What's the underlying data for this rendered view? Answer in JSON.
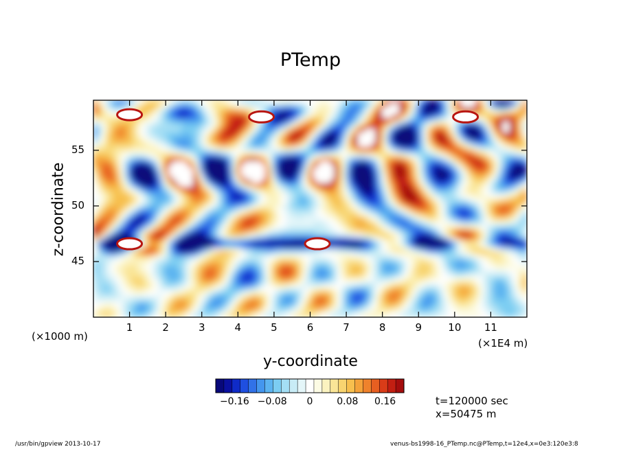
{
  "chart_data": {
    "type": "heatmap",
    "title": "PTemp",
    "xlabel": "y-coordinate",
    "ylabel": "z-coordinate",
    "x_units": "(×1E4 m)",
    "y_units": "(×1000 m)",
    "xlim": [
      0,
      12
    ],
    "ylim": [
      40,
      59.5
    ],
    "x_ticks": [
      "1",
      "2",
      "3",
      "4",
      "5",
      "6",
      "7",
      "8",
      "9",
      "10",
      "11"
    ],
    "x_tick_values": [
      1,
      2,
      3,
      4,
      5,
      6,
      7,
      8,
      9,
      10,
      11
    ],
    "y_ticks": [
      "45",
      "50",
      "55"
    ],
    "y_tick_values": [
      45,
      50,
      55
    ],
    "colorbar": {
      "min": -0.2,
      "max": 0.2,
      "tick_labels": [
        "−0.16",
        "−0.08",
        "0",
        "0.08",
        "0.16"
      ],
      "tick_values": [
        -0.16,
        -0.08,
        0,
        0.08,
        0.16
      ],
      "colors": [
        "#08087a",
        "#0a10a0",
        "#0f2bc8",
        "#1f4fe0",
        "#3172e8",
        "#4496ee",
        "#5cb3f0",
        "#7ccdf2",
        "#a4def4",
        "#c8ecf6",
        "#e4f6f9",
        "#ffffff",
        "#fcfbe4",
        "#fbf3c0",
        "#fae597",
        "#f8d470",
        "#f7bf4e",
        "#f4a23a",
        "#ef822c",
        "#e75f21",
        "#d93c18",
        "#c21f12",
        "#a40d0d"
      ]
    },
    "features": [
      {
        "y": 1.0,
        "z": 58.2,
        "sign": "positive-saturated",
        "label": "top white blob"
      },
      {
        "y": 4.65,
        "z": 58.0,
        "sign": "positive-saturated"
      },
      {
        "y": 6.2,
        "z": 46.6,
        "sign": "positive-saturated"
      },
      {
        "y": 1.0,
        "z": 46.6,
        "sign": "positive-saturated"
      },
      {
        "y": 10.3,
        "z": 58.0,
        "sign": "positive-saturated"
      }
    ]
  },
  "annotations": {
    "time": "t=120000 sec",
    "xpos": "x=50475 m"
  },
  "footer": {
    "left": "/usr/bin/gpview   2013-10-17",
    "right": "venus-bs1998-16_PTemp.nc@PTemp,t=12e4,x=0e3:120e3:8"
  }
}
